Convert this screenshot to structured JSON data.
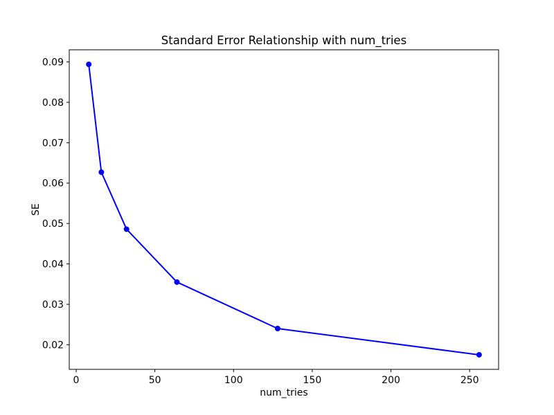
{
  "figure": {
    "background_color": "#ffffff"
  },
  "chart_data": {
    "type": "line",
    "title": "Standard Error Relationship with num_tries",
    "xlabel": "num_tries",
    "ylabel": "SE",
    "x": [
      8,
      16,
      32,
      64,
      128,
      256
    ],
    "y": [
      0.0894,
      0.0627,
      0.0486,
      0.0355,
      0.024,
      0.0175
    ],
    "xlim": [
      -4.4,
      268.4
    ],
    "ylim": [
      0.0139,
      0.093
    ],
    "xticks": {
      "values": [
        0,
        50,
        100,
        150,
        200,
        250
      ],
      "labels": [
        "0",
        "50",
        "100",
        "150",
        "200",
        "250"
      ]
    },
    "yticks": {
      "values": [
        0.02,
        0.03,
        0.04,
        0.05,
        0.06,
        0.07,
        0.08,
        0.09
      ],
      "labels": [
        "0.02",
        "0.03",
        "0.04",
        "0.05",
        "0.06",
        "0.07",
        "0.08",
        "0.09"
      ]
    },
    "grid": false,
    "legend": null,
    "line_color": "#0000ff",
    "marker": "circle",
    "marker_color": "#0000ff",
    "axis_color": "#000000",
    "text_color": "#000000"
  }
}
